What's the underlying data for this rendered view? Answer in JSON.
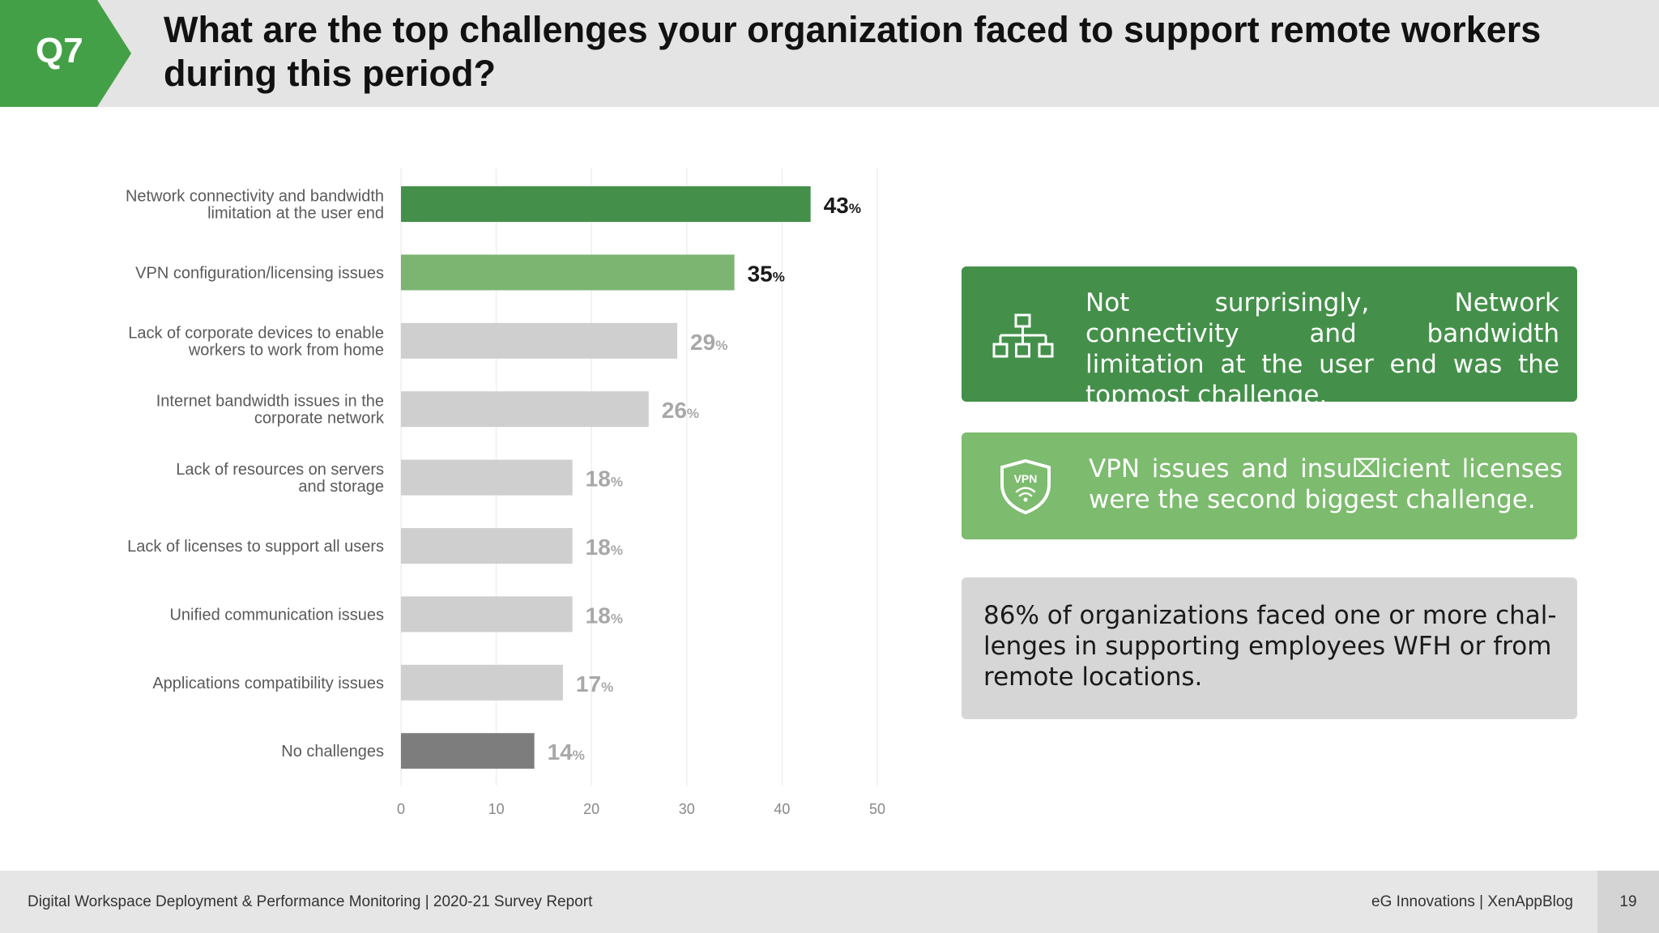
{
  "header": {
    "badge": "Q7",
    "question": "What are the top challenges your organization faced to support remote workers during this period?"
  },
  "chart_data": {
    "type": "bar",
    "orientation": "horizontal",
    "categories": [
      "Network connectivity and bandwidth limitation at the user end",
      "VPN configuration/licensing issues",
      "Lack of corporate devices to enable workers to work from home",
      "Internet bandwidth issues in the corporate network",
      "Lack of resources on servers and storage",
      "Lack of licenses to support all users",
      "Unified communication issues",
      "Applications compatibility issues",
      "No challenges"
    ],
    "category_lines": [
      [
        "Network connectivity and bandwidth",
        "limitation at the user end"
      ],
      [
        "VPN configuration/licensing issues"
      ],
      [
        "Lack of corporate devices to enable",
        "workers to work from home"
      ],
      [
        "Internet bandwidth issues in the",
        "corporate network"
      ],
      [
        "Lack of resources on servers",
        "and storage"
      ],
      [
        "Lack of licenses to support all users"
      ],
      [
        "Unified communication issues"
      ],
      [
        "Applications compatibility issues"
      ],
      [
        "No challenges"
      ]
    ],
    "values": [
      43,
      35,
      29,
      26,
      18,
      18,
      18,
      17,
      14
    ],
    "value_suffix": "%",
    "bar_colors": [
      "#44904a",
      "#7cb572",
      "#cfcfcf",
      "#cfcfcf",
      "#cfcfcf",
      "#cfcfcf",
      "#cfcfcf",
      "#cfcfcf",
      "#7d7d7d"
    ],
    "label_colors": [
      "#1a1a1a",
      "#1a1a1a",
      "#a8a8a8",
      "#a8a8a8",
      "#a8a8a8",
      "#a8a8a8",
      "#a8a8a8",
      "#a8a8a8",
      "#a8a8a8"
    ],
    "xlim": [
      0,
      50
    ],
    "xticks": [
      0,
      10,
      20,
      30,
      40,
      50
    ],
    "grid": true,
    "title": "",
    "xlabel": "",
    "ylabel": ""
  },
  "callouts": [
    {
      "text": "Not surprisingly, Network connectivity and bandwidth limitation at the user end was the topmost challenge.",
      "icon": "network-hierarchy-icon",
      "bg": "#44904a"
    },
    {
      "text": "VPN issues and insu⌧icient licenses were the second biggest challenge.",
      "icon": "vpn-shield-icon",
      "icon_text": "VPN",
      "bg": "#7dbb6f"
    },
    {
      "text": "86% of organizations faced one or more chal-lenges in supporting employees WFH or from remote locations.",
      "bg": "#d6d6d6"
    }
  ],
  "footer": {
    "left": "Digital Workspace Deployment & Performance Monitoring | 2020-21 Survey Report",
    "right": "eG Innovations  |  XenAppBlog",
    "page": "19"
  }
}
